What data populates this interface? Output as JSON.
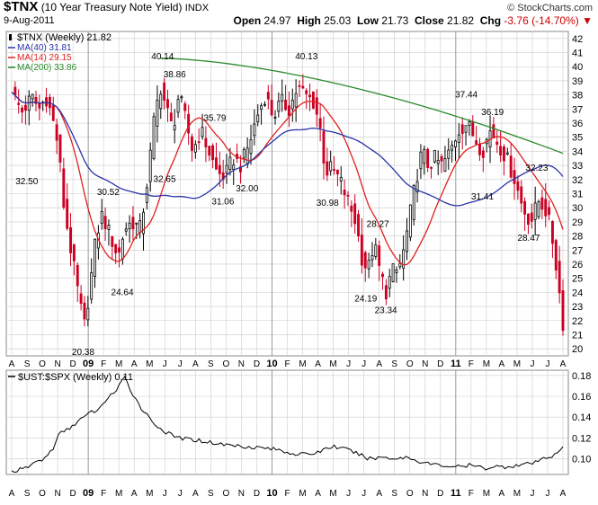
{
  "header": {
    "symbol": "$TNX",
    "name": "(10 Year Treasury Note Yield)",
    "exchange": "INDX",
    "date": "9-Aug-2011",
    "watermark": "© StockCharts.com",
    "open_label": "Open",
    "open_value": "24.97",
    "high_label": "High",
    "high_value": "25.03",
    "low_label": "Low",
    "low_value": "21.73",
    "close_label": "Close",
    "close_value": "21.82",
    "chg_label": "Chg",
    "chg_value": "-3.76 (-14.70%)",
    "chg_arrow": "▼"
  },
  "colors": {
    "up": "#000000",
    "down": "#cc0022",
    "ma40": "#2a34a8",
    "ma14": "#e02020",
    "ma200": "#2a8a2a",
    "ratio": "#000000",
    "grid": "#cccccc"
  },
  "chart_data": [
    {
      "type": "candlestick",
      "panel": "price",
      "ylim": [
        19.5,
        42.5
      ],
      "yticks": [
        20,
        21,
        22,
        23,
        24,
        25,
        26,
        27,
        28,
        29,
        30,
        31,
        32,
        33,
        34,
        35,
        36,
        37,
        38,
        39,
        40,
        41,
        42
      ],
      "month_labels": [
        "A",
        "S",
        "O",
        "N",
        "D",
        "09",
        "F",
        "M",
        "A",
        "M",
        "J",
        "J",
        "A",
        "S",
        "O",
        "N",
        "D",
        "10",
        "F",
        "M",
        "A",
        "M",
        "J",
        "J",
        "A",
        "S",
        "O",
        "N",
        "D",
        "11",
        "F",
        "M",
        "A",
        "M",
        "J",
        "J",
        "A"
      ],
      "legend": [
        {
          "key": "tnx",
          "text": "$TNX (Weekly) 21.82"
        },
        {
          "key": "ma40",
          "text": "MA(40) 31.81"
        },
        {
          "key": "ma14",
          "text": "MA(14) 29.15"
        },
        {
          "key": "ma200",
          "text": "MA(200) 33.86"
        }
      ],
      "annotations": [
        {
          "text": "32.50",
          "x": 0.75,
          "y": 32.5,
          "dir": "below"
        },
        {
          "text": "20.38",
          "x": 3.55,
          "y": 20.38,
          "dir": "below"
        },
        {
          "text": "30.52",
          "x": 4.8,
          "y": 30.52,
          "dir": "above"
        },
        {
          "text": "24.64",
          "x": 5.5,
          "y": 24.64,
          "dir": "below"
        },
        {
          "text": "40.14",
          "x": 7.5,
          "y": 40.14,
          "dir": "above"
        },
        {
          "text": "32.65",
          "x": 7.6,
          "y": 32.65,
          "dir": "below"
        },
        {
          "text": "38.86",
          "x": 8.1,
          "y": 38.86,
          "dir": "above"
        },
        {
          "text": "35.79",
          "x": 10.1,
          "y": 35.79,
          "dir": "above"
        },
        {
          "text": "31.06",
          "x": 10.5,
          "y": 31.06,
          "dir": "below"
        },
        {
          "text": "32.00",
          "x": 11.7,
          "y": 32.0,
          "dir": "below"
        },
        {
          "text": "40.13",
          "x": 14.65,
          "y": 40.13,
          "dir": "above"
        },
        {
          "text": "30.98",
          "x": 15.7,
          "y": 30.98,
          "dir": "below"
        },
        {
          "text": "28.27",
          "x": 18.2,
          "y": 28.27,
          "dir": "above"
        },
        {
          "text": "24.19",
          "x": 17.6,
          "y": 24.19,
          "dir": "below"
        },
        {
          "text": "23.34",
          "x": 18.6,
          "y": 23.34,
          "dir": "below"
        },
        {
          "text": "37.44",
          "x": 22.6,
          "y": 37.44,
          "dir": "above"
        },
        {
          "text": "36.19",
          "x": 23.9,
          "y": 36.19,
          "dir": "above"
        },
        {
          "text": "31.41",
          "x": 23.4,
          "y": 31.41,
          "dir": "below"
        },
        {
          "text": "32.23",
          "x": 26.1,
          "y": 32.23,
          "dir": "above"
        },
        {
          "text": "28.47",
          "x": 25.7,
          "y": 28.47,
          "dir": "below"
        }
      ],
      "close_anchors": [
        [
          0.0,
          38.2
        ],
        [
          0.5,
          36.8
        ],
        [
          1.0,
          37.8
        ],
        [
          1.4,
          37.0
        ],
        [
          1.7,
          37.9
        ],
        [
          2.0,
          36.5
        ],
        [
          2.3,
          34.5
        ],
        [
          2.6,
          30.0
        ],
        [
          3.0,
          26.5
        ],
        [
          3.3,
          24.0
        ],
        [
          3.6,
          21.5
        ],
        [
          3.9,
          24.5
        ],
        [
          4.2,
          28.0
        ],
        [
          4.5,
          29.5
        ],
        [
          4.9,
          28.0
        ],
        [
          5.3,
          26.5
        ],
        [
          5.6,
          28.5
        ],
        [
          6.0,
          29.0
        ],
        [
          6.4,
          28.5
        ],
        [
          6.8,
          32.5
        ],
        [
          7.1,
          36.5
        ],
        [
          7.4,
          38.6
        ],
        [
          7.7,
          37.0
        ],
        [
          8.0,
          35.5
        ],
        [
          8.3,
          38.0
        ],
        [
          8.6,
          36.5
        ],
        [
          9.0,
          34.0
        ],
        [
          9.4,
          35.5
        ],
        [
          9.8,
          34.0
        ],
        [
          10.2,
          32.5
        ],
        [
          10.6,
          32.2
        ],
        [
          11.0,
          33.5
        ],
        [
          11.4,
          33.0
        ],
        [
          11.8,
          34.5
        ],
        [
          12.2,
          36.5
        ],
        [
          12.6,
          38.0
        ],
        [
          13.0,
          36.5
        ],
        [
          13.4,
          37.5
        ],
        [
          13.8,
          37.0
        ],
        [
          14.2,
          38.5
        ],
        [
          14.6,
          38.0
        ],
        [
          15.0,
          37.5
        ],
        [
          15.3,
          36.0
        ],
        [
          15.6,
          32.5
        ],
        [
          15.9,
          32.8
        ],
        [
          16.3,
          32.0
        ],
        [
          16.7,
          30.5
        ],
        [
          17.1,
          29.0
        ],
        [
          17.4,
          26.5
        ],
        [
          17.7,
          25.5
        ],
        [
          18.0,
          27.5
        ],
        [
          18.3,
          25.5
        ],
        [
          18.6,
          24.0
        ],
        [
          18.9,
          25.5
        ],
        [
          19.2,
          25.5
        ],
        [
          19.5,
          27.0
        ],
        [
          19.8,
          29.5
        ],
        [
          20.1,
          32.0
        ],
        [
          20.4,
          34.0
        ],
        [
          20.7,
          33.0
        ],
        [
          21.0,
          33.5
        ],
        [
          21.4,
          33.0
        ],
        [
          21.8,
          34.0
        ],
        [
          22.2,
          35.5
        ],
        [
          22.6,
          36.0
        ],
        [
          23.0,
          35.0
        ],
        [
          23.4,
          34.0
        ],
        [
          23.8,
          35.5
        ],
        [
          24.2,
          34.5
        ],
        [
          24.6,
          33.5
        ],
        [
          25.0,
          32.0
        ],
        [
          25.4,
          30.0
        ],
        [
          25.8,
          29.0
        ],
        [
          26.2,
          30.5
        ],
        [
          26.5,
          30.0
        ],
        [
          26.8,
          28.5
        ],
        [
          27.1,
          25.5
        ],
        [
          27.4,
          21.82
        ]
      ]
    },
    {
      "type": "line",
      "panel": "ratio",
      "legend": [
        {
          "key": "ratio",
          "text": "$UST:$SPX (Weekly) 0.11"
        }
      ],
      "ylim": [
        0.085,
        0.185
      ],
      "yticks": [
        0.1,
        0.12,
        0.14,
        0.16,
        0.18
      ],
      "ytick_labels": [
        "0.10",
        "0.12",
        "0.14",
        "0.16",
        "0.18"
      ],
      "month_labels": [
        "A",
        "S",
        "O",
        "N",
        "D",
        "09",
        "F",
        "M",
        "A",
        "M",
        "J",
        "J",
        "A",
        "S",
        "O",
        "N",
        "D",
        "10",
        "F",
        "M",
        "A",
        "M",
        "J",
        "J",
        "A",
        "S",
        "O",
        "N",
        "D",
        "11",
        "F",
        "M",
        "A",
        "M",
        "J",
        "J",
        "A"
      ],
      "anchors": [
        [
          0.0,
          0.088
        ],
        [
          0.6,
          0.09
        ],
        [
          1.2,
          0.097
        ],
        [
          1.6,
          0.1
        ],
        [
          2.0,
          0.108
        ],
        [
          2.4,
          0.125
        ],
        [
          2.8,
          0.128
        ],
        [
          3.2,
          0.135
        ],
        [
          3.6,
          0.14
        ],
        [
          4.0,
          0.145
        ],
        [
          4.4,
          0.148
        ],
        [
          4.8,
          0.16
        ],
        [
          5.2,
          0.165
        ],
        [
          5.6,
          0.178
        ],
        [
          6.0,
          0.163
        ],
        [
          6.4,
          0.15
        ],
        [
          6.8,
          0.14
        ],
        [
          7.2,
          0.132
        ],
        [
          7.6,
          0.126
        ],
        [
          8.0,
          0.122
        ],
        [
          8.6,
          0.119
        ],
        [
          9.2,
          0.118
        ],
        [
          9.8,
          0.116
        ],
        [
          10.4,
          0.114
        ],
        [
          11.0,
          0.113
        ],
        [
          11.6,
          0.112
        ],
        [
          12.2,
          0.111
        ],
        [
          12.8,
          0.11
        ],
        [
          13.4,
          0.108
        ],
        [
          14.0,
          0.105
        ],
        [
          14.6,
          0.104
        ],
        [
          15.2,
          0.106
        ],
        [
          15.6,
          0.11
        ],
        [
          16.0,
          0.112
        ],
        [
          16.4,
          0.11
        ],
        [
          16.8,
          0.108
        ],
        [
          17.2,
          0.105
        ],
        [
          17.6,
          0.101
        ],
        [
          18.0,
          0.1
        ],
        [
          18.4,
          0.102
        ],
        [
          18.8,
          0.101
        ],
        [
          19.2,
          0.1
        ],
        [
          19.6,
          0.102
        ],
        [
          20.0,
          0.099
        ],
        [
          20.4,
          0.097
        ],
        [
          20.8,
          0.095
        ],
        [
          21.2,
          0.094
        ],
        [
          21.6,
          0.093
        ],
        [
          22.0,
          0.093
        ],
        [
          22.4,
          0.092
        ],
        [
          22.8,
          0.094
        ],
        [
          23.2,
          0.092
        ],
        [
          23.6,
          0.091
        ],
        [
          24.0,
          0.093
        ],
        [
          24.4,
          0.092
        ],
        [
          24.8,
          0.093
        ],
        [
          25.2,
          0.094
        ],
        [
          25.6,
          0.095
        ],
        [
          26.0,
          0.096
        ],
        [
          26.4,
          0.1
        ],
        [
          26.8,
          0.102
        ],
        [
          27.1,
          0.107
        ],
        [
          27.4,
          0.11
        ]
      ]
    }
  ]
}
